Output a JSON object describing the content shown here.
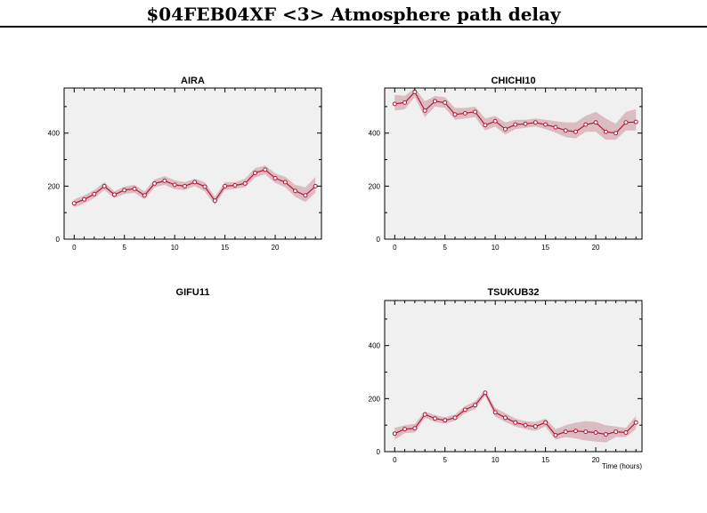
{
  "page": {
    "title": "$04FEB04XF <3>  Atmosphere path delay"
  },
  "chart_data": [
    {
      "type": "line",
      "title": "AIRA",
      "xlabel": "",
      "ylabel": "",
      "xlim": [
        -1,
        24.6
      ],
      "ylim": [
        0,
        570
      ],
      "xticks": [
        0,
        5,
        10,
        15,
        20
      ],
      "yticks": [
        0,
        200,
        400
      ],
      "x": [
        0,
        1,
        2,
        3,
        4,
        5,
        6,
        7,
        8,
        9,
        10,
        11,
        12,
        13,
        14,
        15,
        16,
        17,
        18,
        19,
        20,
        21,
        22,
        23,
        24
      ],
      "values": [
        135,
        150,
        170,
        200,
        168,
        185,
        190,
        165,
        210,
        220,
        205,
        200,
        215,
        198,
        145,
        200,
        203,
        210,
        250,
        262,
        230,
        215,
        182,
        165,
        200
      ],
      "band_upper": [
        150,
        165,
        185,
        215,
        180,
        198,
        205,
        180,
        225,
        238,
        222,
        215,
        228,
        215,
        160,
        215,
        215,
        228,
        268,
        278,
        248,
        235,
        205,
        195,
        235
      ],
      "band_lower": [
        120,
        135,
        155,
        185,
        155,
        170,
        175,
        150,
        195,
        205,
        188,
        185,
        200,
        180,
        130,
        185,
        190,
        195,
        232,
        245,
        212,
        195,
        160,
        140,
        175
      ],
      "grid": false
    },
    {
      "type": "line",
      "title": "CHICHI10",
      "xlabel": "",
      "ylabel": "",
      "xlim": [
        -1,
        24.6
      ],
      "ylim": [
        0,
        570
      ],
      "xticks": [
        0,
        5,
        10,
        15,
        20
      ],
      "yticks": [
        0,
        200,
        400
      ],
      "x": [
        0,
        1,
        2,
        3,
        4,
        5,
        6,
        7,
        8,
        9,
        10,
        11,
        12,
        13,
        14,
        15,
        16,
        17,
        18,
        19,
        20,
        21,
        22,
        23,
        24
      ],
      "values": [
        510,
        515,
        555,
        485,
        520,
        515,
        470,
        475,
        480,
        430,
        445,
        415,
        432,
        435,
        440,
        432,
        422,
        410,
        405,
        432,
        440,
        405,
        400,
        440,
        442
      ],
      "band_upper": [
        545,
        540,
        570,
        520,
        540,
        535,
        495,
        495,
        500,
        455,
        465,
        440,
        450,
        450,
        455,
        450,
        445,
        440,
        440,
        465,
        480,
        455,
        435,
        480,
        490
      ],
      "band_lower": [
        485,
        490,
        535,
        460,
        500,
        495,
        450,
        455,
        460,
        410,
        425,
        395,
        415,
        420,
        425,
        415,
        402,
        385,
        380,
        405,
        405,
        375,
        375,
        410,
        410
      ],
      "grid": false
    },
    {
      "type": "line",
      "title": "GIFU11",
      "xlabel": "",
      "ylabel": "",
      "x": [],
      "values": []
    },
    {
      "type": "line",
      "title": "TSUKUB32",
      "xlabel": "Time (hours)",
      "ylabel": "",
      "xlim": [
        -1,
        24.6
      ],
      "ylim": [
        0,
        570
      ],
      "xticks": [
        0,
        5,
        10,
        15,
        20
      ],
      "yticks": [
        0,
        200,
        400
      ],
      "x": [
        0,
        1,
        2,
        3,
        4,
        5,
        6,
        7,
        8,
        9,
        10,
        11,
        12,
        13,
        14,
        15,
        16,
        17,
        18,
        19,
        20,
        21,
        22,
        23,
        24
      ],
      "values": [
        68,
        85,
        88,
        140,
        125,
        118,
        128,
        158,
        175,
        222,
        148,
        128,
        110,
        100,
        95,
        110,
        62,
        75,
        78,
        75,
        72,
        65,
        75,
        72,
        110
      ],
      "band_upper": [
        90,
        100,
        105,
        152,
        138,
        130,
        140,
        172,
        190,
        232,
        165,
        145,
        125,
        115,
        112,
        125,
        85,
        100,
        110,
        115,
        112,
        100,
        95,
        90,
        135
      ],
      "band_lower": [
        45,
        70,
        72,
        128,
        112,
        106,
        116,
        145,
        160,
        212,
        132,
        112,
        95,
        85,
        78,
        95,
        45,
        55,
        50,
        42,
        38,
        35,
        55,
        55,
        85
      ],
      "grid": false
    }
  ],
  "colors": {
    "plot_bg": "#f0f0f0",
    "band": "#dbbcc2",
    "line": "#b3173a",
    "marker_fill": "#ffffff",
    "axis": "#000000"
  }
}
